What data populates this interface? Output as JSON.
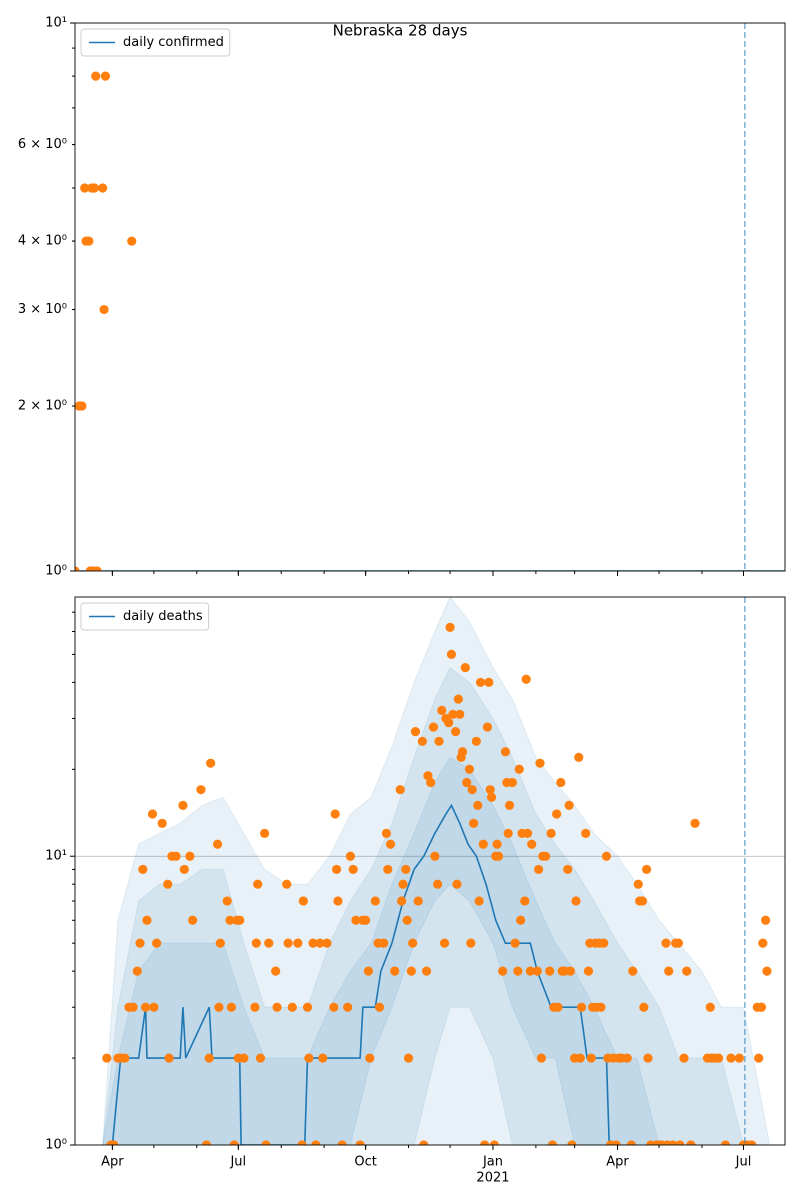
{
  "chart_data": [
    {
      "type": "line",
      "title": "Nebraska 28 days",
      "yscale": "log",
      "grid": true,
      "legend": "upper left",
      "xlim": [
        "2020-03-05",
        "2021-07-31"
      ],
      "ylim": [
        1,
        10
      ],
      "yticks": [
        {
          "value": 1,
          "label": "10⁰"
        },
        {
          "value": 10,
          "label": "10¹"
        }
      ],
      "yticks_minor": [
        {
          "value": 2,
          "label": "2 × 10⁰"
        },
        {
          "value": 3,
          "label": "3 × 10⁰"
        },
        {
          "value": 4,
          "label": "4 × 10⁰"
        },
        {
          "value": 6,
          "label": "6 × 10⁰"
        }
      ],
      "vline": "2021-07-02",
      "vline_color": "#1f77b4",
      "series": [
        {
          "name": "daily confirmed",
          "color": "#1f77b4",
          "x": [
            "2020-03-05",
            "2021-07-31"
          ],
          "values": [
            1,
            1
          ]
        }
      ],
      "scatter": {
        "color": "#ff7f0e",
        "x": [
          "2020-03-05",
          "2020-03-08",
          "2020-03-10",
          "2020-03-12",
          "2020-03-13",
          "2020-03-15",
          "2020-03-16",
          "2020-03-17",
          "2020-03-18",
          "2020-03-19",
          "2020-03-20",
          "2020-03-21",
          "2020-03-25",
          "2020-03-26",
          "2020-03-27",
          "2020-04-15"
        ],
        "values": [
          1,
          2,
          2,
          5,
          4,
          4,
          1,
          5,
          1,
          5,
          8,
          1,
          5,
          3,
          8,
          4
        ]
      }
    },
    {
      "type": "line",
      "yscale": "log",
      "grid": true,
      "legend": "upper left",
      "xlim": [
        "2020-03-05",
        "2021-07-31"
      ],
      "ylim": [
        1,
        79
      ],
      "yticks": [
        {
          "value": 1,
          "label": "10⁰"
        },
        {
          "value": 10,
          "label": "10¹"
        }
      ],
      "xticks": [
        {
          "value": "2020-04-01",
          "label": "Apr"
        },
        {
          "value": "2020-07-01",
          "label": "Jul"
        },
        {
          "value": "2020-10-01",
          "label": "Oct"
        },
        {
          "value": "2021-01-01",
          "label": "Jan"
        },
        {
          "value": "2021-04-01",
          "label": "Apr"
        },
        {
          "value": "2021-07-01",
          "label": "Jul"
        }
      ],
      "x_sublabels": [
        {
          "value": "2021-01-01",
          "label": "2021"
        }
      ],
      "vline": "2021-07-02",
      "vline_color": "#1f77b4",
      "bands": {
        "color": "#1f77b4",
        "opacity": 0.1,
        "x": [
          "2020-03-25",
          "2020-04-05",
          "2020-04-20",
          "2020-05-05",
          "2020-05-20",
          "2020-06-05",
          "2020-06-20",
          "2020-07-05",
          "2020-07-20",
          "2020-08-05",
          "2020-08-20",
          "2020-09-05",
          "2020-09-20",
          "2020-10-05",
          "2020-10-20",
          "2020-11-05",
          "2020-11-20",
          "2020-12-01",
          "2020-12-15",
          "2021-01-01",
          "2021-01-15",
          "2021-02-01",
          "2021-02-15",
          "2021-03-01",
          "2021-03-15",
          "2021-04-01",
          "2021-04-15",
          "2021-05-01",
          "2021-05-15",
          "2021-06-01",
          "2021-06-15",
          "2021-07-01",
          "2021-07-20"
        ],
        "ranges": [
          {
            "lower": [
              1,
              1,
              1,
              1,
              1,
              1,
              1,
              1,
              1,
              1,
              1,
              1,
              1,
              1,
              1,
              1,
              1,
              1,
              1,
              1,
              1,
              1,
              1,
              1,
              1,
              1,
              1,
              1,
              1,
              1,
              1,
              1,
              1
            ],
            "upper": [
              1,
              6,
              11,
              12,
              13,
              15,
              16,
              12,
              9,
              8,
              8,
              10,
              14,
              16,
              24,
              40,
              60,
              79,
              65,
              45,
              35,
              22,
              18,
              15,
              12,
              10,
              8,
              6,
              5,
              4,
              3,
              3,
              1
            ]
          },
          {
            "lower": [
              1,
              1,
              1,
              1,
              1,
              1,
              1,
              1,
              1,
              1,
              1,
              1,
              1,
              1,
              1,
              1,
              2,
              3,
              3,
              2,
              1,
              1,
              1,
              1,
              1,
              1,
              1,
              1,
              1,
              1,
              1,
              1,
              1
            ],
            "upper": [
              1,
              3,
              7,
              8,
              8,
              9,
              9,
              5,
              3,
              3,
              3,
              5,
              7,
              9,
              13,
              22,
              35,
              45,
              40,
              30,
              22,
              14,
              11,
              9,
              7,
              5,
              4,
              3,
              2,
              2,
              2,
              1,
              1
            ]
          },
          {
            "lower": [
              1,
              1,
              1,
              1,
              1,
              1,
              1,
              1,
              1,
              1,
              1,
              1,
              1,
              2,
              3,
              5,
              7,
              8,
              7,
              5,
              3,
              2,
              2,
              1,
              1,
              1,
              1,
              1,
              1,
              1,
              1,
              1,
              1
            ],
            "upper": [
              1,
              2,
              4,
              5,
              5,
              5,
              5,
              3,
              2,
              2,
              2,
              3,
              4,
              5,
              8,
              12,
              18,
              22,
              20,
              15,
              11,
              7,
              5,
              4,
              3,
              2,
              2,
              1,
              1,
              1,
              1,
              1,
              1
            ]
          }
        ]
      },
      "series": [
        {
          "name": "daily deaths",
          "color": "#1f77b4",
          "x": [
            "2020-04-01",
            "2020-04-07",
            "2020-04-20",
            "2020-04-25",
            "2020-04-26",
            "2020-05-10",
            "2020-05-20",
            "2020-05-22",
            "2020-05-24",
            "2020-06-10",
            "2020-06-12",
            "2020-06-25",
            "2020-07-02",
            "2020-07-03",
            "2020-08-18",
            "2020-08-20",
            "2020-09-05",
            "2020-09-27",
            "2020-09-29",
            "2020-10-08",
            "2020-10-12",
            "2020-10-20",
            "2020-10-28",
            "2020-11-05",
            "2020-11-12",
            "2020-11-20",
            "2020-11-28",
            "2020-12-02",
            "2020-12-08",
            "2020-12-14",
            "2020-12-20",
            "2020-12-27",
            "2021-01-03",
            "2021-01-10",
            "2021-01-20",
            "2021-01-28",
            "2021-02-02",
            "2021-02-12",
            "2021-02-25",
            "2021-03-05",
            "2021-03-10",
            "2021-03-24",
            "2021-03-26"
          ],
          "values": [
            1,
            2,
            2,
            3,
            2,
            2,
            2,
            3,
            2,
            3,
            2,
            2,
            2,
            1,
            1,
            2,
            2,
            2,
            3,
            3,
            4,
            5,
            7,
            9,
            10,
            12,
            14,
            15,
            13,
            11,
            10,
            8,
            6,
            5,
            5,
            5,
            4,
            3,
            3,
            3,
            2,
            2,
            1
          ]
        }
      ],
      "scatter": {
        "color": "#ff7f0e",
        "x": [
          "2020-03-28",
          "2020-03-31",
          "2020-04-02",
          "2020-04-05",
          "2020-04-07",
          "2020-04-10",
          "2020-04-13",
          "2020-04-16",
          "2020-04-19",
          "2020-04-21",
          "2020-04-23",
          "2020-04-25",
          "2020-04-26",
          "2020-04-30",
          "2020-05-01",
          "2020-05-03",
          "2020-05-07",
          "2020-05-11",
          "2020-05-12",
          "2020-05-14",
          "2020-05-17",
          "2020-05-22",
          "2020-05-23",
          "2020-05-27",
          "2020-05-29",
          "2020-06-04",
          "2020-06-08",
          "2020-06-10",
          "2020-06-11",
          "2020-06-16",
          "2020-06-17",
          "2020-06-18",
          "2020-06-23",
          "2020-06-25",
          "2020-06-26",
          "2020-06-28",
          "2020-06-30",
          "2020-07-01",
          "2020-07-02",
          "2020-07-05",
          "2020-07-13",
          "2020-07-14",
          "2020-07-15",
          "2020-07-17",
          "2020-07-20",
          "2020-07-21",
          "2020-07-23",
          "2020-07-28",
          "2020-07-29",
          "2020-08-05",
          "2020-08-06",
          "2020-08-09",
          "2020-08-13",
          "2020-08-16",
          "2020-08-17",
          "2020-08-20",
          "2020-08-21",
          "2020-08-24",
          "2020-08-26",
          "2020-08-29",
          "2020-08-31",
          "2020-09-03",
          "2020-09-08",
          "2020-09-09",
          "2020-09-10",
          "2020-09-11",
          "2020-09-14",
          "2020-09-18",
          "2020-09-20",
          "2020-09-22",
          "2020-09-24",
          "2020-09-27",
          "2020-09-29",
          "2020-10-01",
          "2020-10-03",
          "2020-10-04",
          "2020-10-08",
          "2020-10-10",
          "2020-10-11",
          "2020-10-14",
          "2020-10-16",
          "2020-10-17",
          "2020-10-19",
          "2020-10-22",
          "2020-10-26",
          "2020-10-27",
          "2020-10-28",
          "2020-10-30",
          "2020-10-31",
          "2020-11-01",
          "2020-11-03",
          "2020-11-04",
          "2020-11-06",
          "2020-11-08",
          "2020-11-11",
          "2020-11-12",
          "2020-11-14",
          "2020-11-15",
          "2020-11-17",
          "2020-11-19",
          "2020-11-20",
          "2020-11-22",
          "2020-11-23",
          "2020-11-25",
          "2020-11-27",
          "2020-11-28",
          "2020-11-30",
          "2020-12-01",
          "2020-12-02",
          "2020-12-03",
          "2020-12-05",
          "2020-12-06",
          "2020-12-07",
          "2020-12-08",
          "2020-12-09",
          "2020-12-10",
          "2020-12-12",
          "2020-12-13",
          "2020-12-15",
          "2020-12-16",
          "2020-12-17",
          "2020-12-18",
          "2020-12-20",
          "2020-12-21",
          "2020-12-22",
          "2020-12-23",
          "2020-12-25",
          "2020-12-26",
          "2020-12-28",
          "2020-12-29",
          "2020-12-30",
          "2020-12-31",
          "2021-01-02",
          "2021-01-03",
          "2021-01-04",
          "2021-01-05",
          "2021-01-08",
          "2021-01-10",
          "2021-01-11",
          "2021-01-12",
          "2021-01-13",
          "2021-01-15",
          "2021-01-17",
          "2021-01-19",
          "2021-01-20",
          "2021-01-21",
          "2021-01-22",
          "2021-01-24",
          "2021-01-25",
          "2021-01-26",
          "2021-01-28",
          "2021-01-29",
          "2021-02-02",
          "2021-02-03",
          "2021-02-04",
          "2021-02-05",
          "2021-02-06",
          "2021-02-08",
          "2021-02-11",
          "2021-02-12",
          "2021-02-13",
          "2021-02-14",
          "2021-02-16",
          "2021-02-17",
          "2021-02-19",
          "2021-02-20",
          "2021-02-22",
          "2021-02-24",
          "2021-02-25",
          "2021-02-26",
          "2021-02-27",
          "2021-03-01",
          "2021-03-02",
          "2021-03-04",
          "2021-03-05",
          "2021-03-06",
          "2021-03-09",
          "2021-03-11",
          "2021-03-12",
          "2021-03-13",
          "2021-03-14",
          "2021-03-16",
          "2021-03-17",
          "2021-03-19",
          "2021-03-20",
          "2021-03-22",
          "2021-03-24",
          "2021-03-25",
          "2021-03-27",
          "2021-03-29",
          "2021-03-31",
          "2021-04-02",
          "2021-04-04",
          "2021-04-08",
          "2021-04-11",
          "2021-04-12",
          "2021-04-16",
          "2021-04-17",
          "2021-04-19",
          "2021-04-20",
          "2021-04-22",
          "2021-04-23",
          "2021-04-25",
          "2021-04-29",
          "2021-05-01",
          "2021-05-03",
          "2021-05-06",
          "2021-05-07",
          "2021-05-08",
          "2021-05-11",
          "2021-05-13",
          "2021-05-15",
          "2021-05-16",
          "2021-05-19",
          "2021-05-21",
          "2021-05-24",
          "2021-05-27",
          "2021-06-05",
          "2021-06-07",
          "2021-06-08",
          "2021-06-10",
          "2021-06-13",
          "2021-06-18",
          "2021-06-22",
          "2021-06-28",
          "2021-07-01",
          "2021-07-04",
          "2021-07-07",
          "2021-07-11",
          "2021-07-12",
          "2021-07-14",
          "2021-07-15",
          "2021-07-17",
          "2021-07-18"
        ],
        "values": [
          2,
          1,
          1,
          2,
          2,
          2,
          3,
          3,
          4,
          5,
          9,
          3,
          6,
          14,
          3,
          5,
          13,
          8,
          2,
          10,
          10,
          15,
          9,
          10,
          6,
          17,
          1,
          2,
          21,
          11,
          3,
          5,
          7,
          6,
          3,
          1,
          6,
          2,
          6,
          2,
          3,
          5,
          8,
          2,
          12,
          1,
          5,
          4,
          3,
          8,
          5,
          3,
          5,
          1,
          7,
          3,
          2,
          5,
          1,
          5,
          2,
          5,
          3,
          14,
          9,
          7,
          1,
          3,
          10,
          9,
          6,
          1,
          6,
          6,
          4,
          2,
          7,
          5,
          3,
          5,
          12,
          9,
          11,
          4,
          17,
          7,
          8,
          9,
          6,
          2,
          4,
          5,
          27,
          7,
          25,
          1,
          4,
          19,
          18,
          28,
          10,
          8,
          25,
          32,
          5,
          30,
          29,
          62,
          50,
          31,
          27,
          8,
          35,
          31,
          22,
          23,
          45,
          18,
          20,
          5,
          17,
          13,
          25,
          15,
          7,
          40,
          11,
          1,
          28,
          40,
          17,
          16,
          1,
          10,
          11,
          10,
          4,
          23,
          18,
          12,
          15,
          18,
          5,
          4,
          20,
          6,
          12,
          7,
          41,
          12,
          4,
          11,
          4,
          9,
          21,
          2,
          10,
          10,
          4,
          12,
          1,
          3,
          14,
          3,
          18,
          4,
          4,
          9,
          15,
          4,
          1,
          2,
          7,
          22,
          2,
          3,
          12,
          4,
          5,
          2,
          3,
          5,
          3,
          5,
          3,
          5,
          10,
          2,
          1,
          2,
          1,
          2,
          2,
          2,
          1,
          4,
          8,
          7,
          7,
          3,
          9,
          2,
          1,
          1,
          1,
          1,
          5,
          1,
          4,
          1,
          5,
          5,
          1,
          2,
          4,
          1,
          13,
          2,
          3,
          2,
          2,
          2,
          1,
          2,
          2,
          1,
          1,
          1,
          3,
          2,
          3,
          5,
          6,
          4
        ]
      }
    }
  ]
}
